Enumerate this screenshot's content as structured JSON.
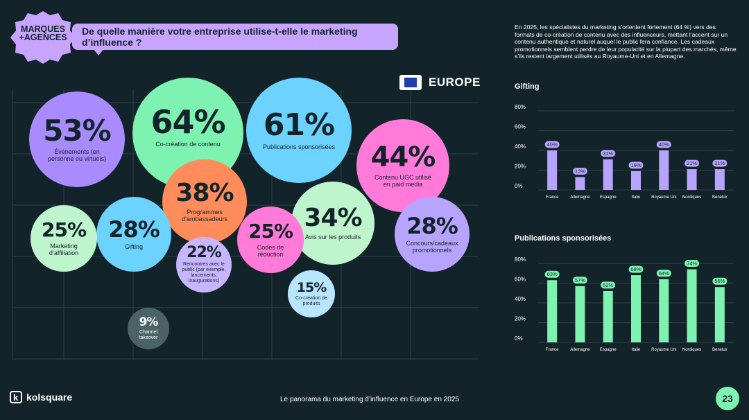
{
  "header": {
    "badge": "MARQUES\n+AGENCES",
    "question": "De quelle manière votre entreprise utilise-t-elle le marketing d’influence ?",
    "region": "EUROPE"
  },
  "colors": {
    "background": "#13232a",
    "purple": "#a98bff",
    "green": "#7ef2b0",
    "blue": "#6cd2ff",
    "pink": "#ff7ad9",
    "orange": "#ff8c5a",
    "lavender": "#b7a4ff",
    "light_green": "#bff5cd",
    "light_purple": "#c7b5ff",
    "gray": "#4c6366",
    "light_blue": "#b8e6ff"
  },
  "bubbles": [
    {
      "id": "evenements",
      "pct": "53%",
      "label": "Événements (en personne ou virtuels)"
    },
    {
      "id": "co-creation",
      "pct": "64%",
      "label": "Co-création de contenu"
    },
    {
      "id": "publications",
      "pct": "61%",
      "label": "Publications sponsorisées"
    },
    {
      "id": "ugc",
      "pct": "44%",
      "label": "Contenu UGC utilisé en paid media"
    },
    {
      "id": "ambassadeurs",
      "pct": "38%",
      "label": "Programmes d’ambassadeurs"
    },
    {
      "id": "affiliation",
      "pct": "25%",
      "label": "Marketing d’affiliation"
    },
    {
      "id": "gifting",
      "pct": "28%",
      "label": "Gifting"
    },
    {
      "id": "codes",
      "pct": "25%",
      "label": "Codes de réduction"
    },
    {
      "id": "avis",
      "pct": "34%",
      "label": "Avis sur les produits"
    },
    {
      "id": "concours",
      "pct": "28%",
      "label": "Concours/cadeaux promotionnels"
    },
    {
      "id": "rencontres",
      "pct": "22%",
      "label": "Rencontres avec le public (par exemple, lancements, inaugurations)"
    },
    {
      "id": "co-creation-produits",
      "pct": "15%",
      "label": "Co-création de produits"
    },
    {
      "id": "channel",
      "pct": "9%",
      "label": "Channel takeover"
    }
  ],
  "intro": "En 2025, les spécialistes du marketing s’orientent fortement (64 %) vers des formats de co-création de contenu avec des influenceurs, mettant l’accent sur un contenu authentique et naturel auquel le public fera confiance. Les cadeaux promotionnels semblent perdre de leur popularité sur la plupart des marchés, même s’ils restent largement utilisés au Royaume-Uni et en Allemagne.",
  "chart_data": [
    {
      "type": "bar",
      "title": "Gifting",
      "categories": [
        "France",
        "Allemagne",
        "Espagne",
        "Italie",
        "Royaume Uni",
        "Nordiques",
        "Benelux"
      ],
      "values": [
        40,
        13,
        31,
        19,
        40,
        21,
        21
      ],
      "value_labels": [
        "40%",
        "13%",
        "31%",
        "19%",
        "40%",
        "21%",
        "21%"
      ],
      "y_ticks": [
        "0%",
        "20%",
        "40%",
        "60%",
        "80%"
      ],
      "ylim": [
        0,
        80
      ],
      "color": "#b7a4ff"
    },
    {
      "type": "bar",
      "title": "Publications sponsorisées",
      "categories": [
        "France",
        "Allemagne",
        "Espagne",
        "Italie",
        "Royaume Uni",
        "Nordiques",
        "Benelux"
      ],
      "values": [
        63,
        57,
        52,
        68,
        64,
        74,
        56
      ],
      "value_labels": [
        "63%",
        "57%",
        "52%",
        "68%",
        "64%",
        "74%",
        "56%"
      ],
      "y_ticks": [
        "0%",
        "20%",
        "40%",
        "60%",
        "80%"
      ],
      "ylim": [
        0,
        80
      ],
      "color": "#7ef2b0"
    }
  ],
  "footer": {
    "logo": "kolsquare",
    "logo_mark": "k",
    "caption": "Le panorama du marketing d’influence en Europe en 2025",
    "page": "23"
  }
}
